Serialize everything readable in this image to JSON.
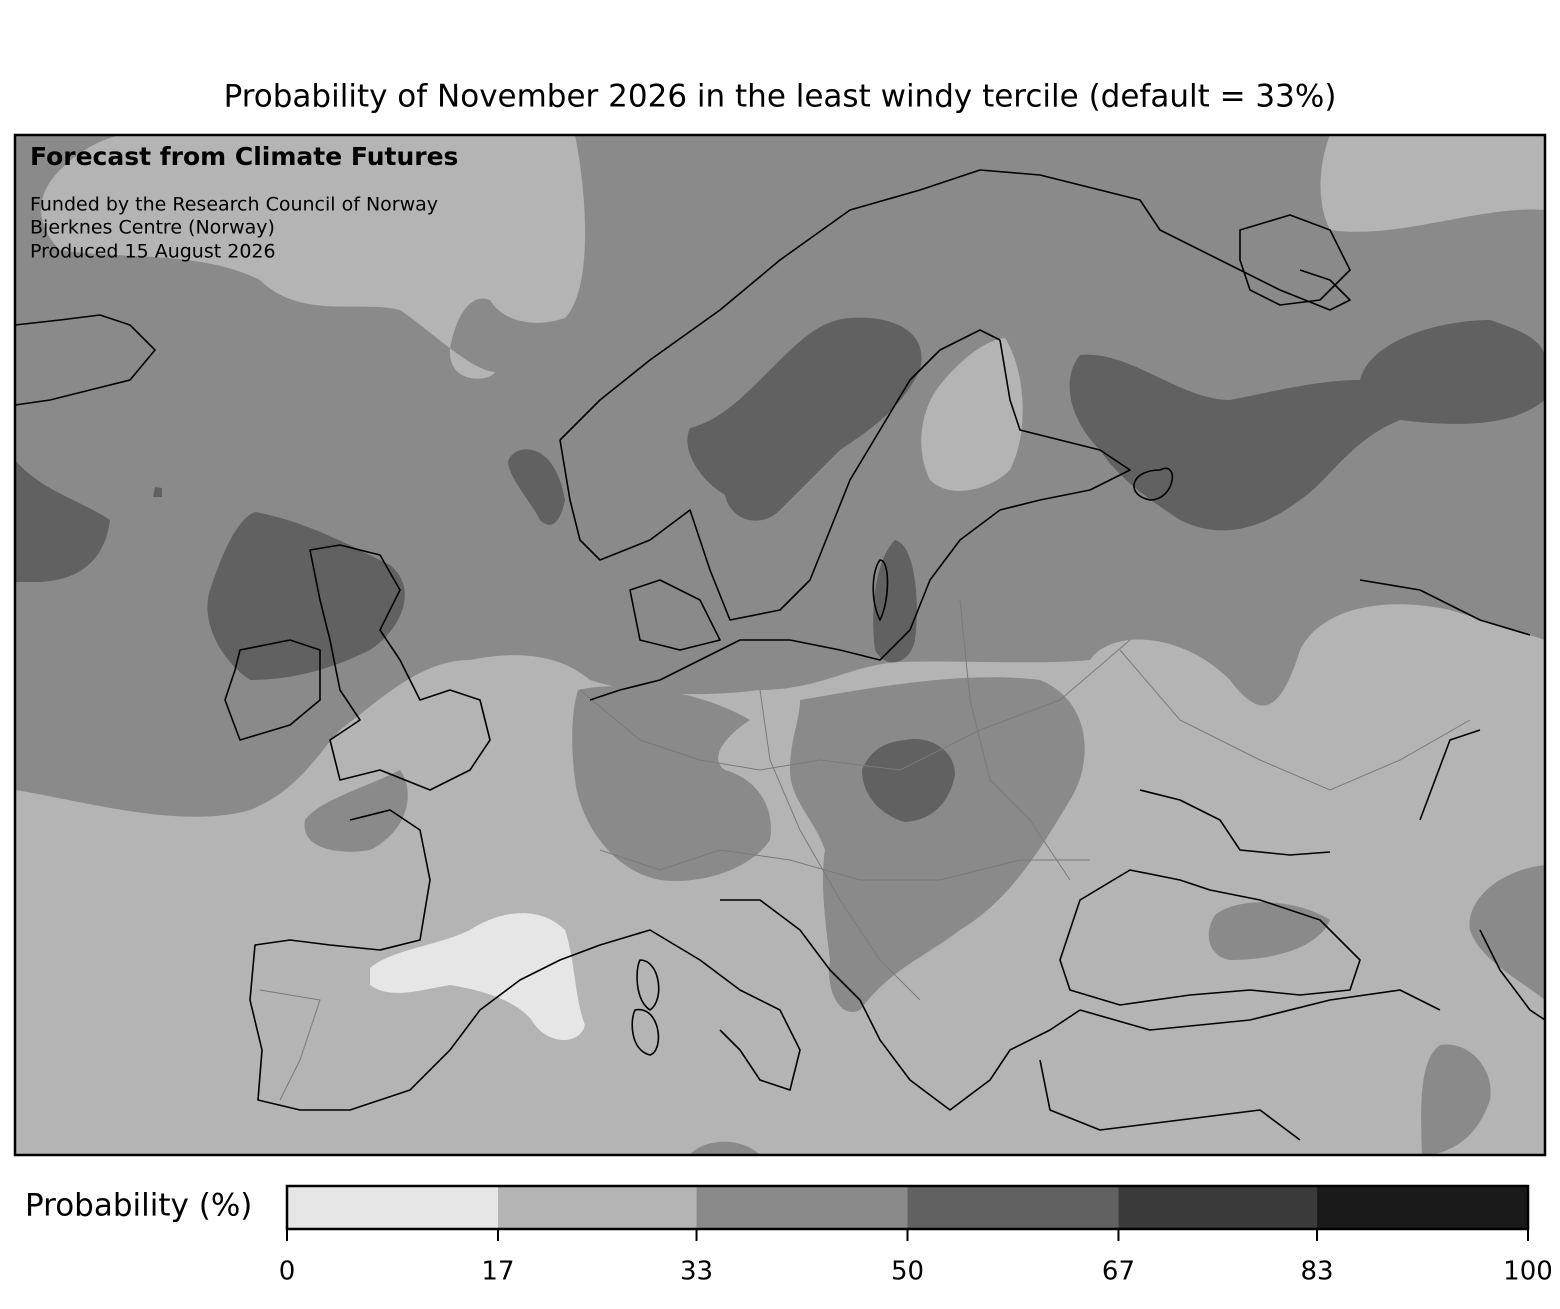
{
  "title": "Probability of November 2026 in the least windy tercile (default = 33%)",
  "annotations": {
    "heading": "Forecast from Climate Futures",
    "lines": [
      "Funded by the Research Council of Norway",
      "Bjerknes Centre (Norway)",
      "Produced 15 August 2026"
    ]
  },
  "colorbar": {
    "label": "Probability (%)",
    "lim": [
      0,
      100
    ],
    "ticks": [
      0,
      17,
      33,
      50,
      67,
      83,
      100
    ],
    "colors": [
      "#e6e6e6",
      "#b4b4b4",
      "#8a8a8a",
      "#616161",
      "#3a3a3a",
      "#1a1a1a"
    ]
  }
}
